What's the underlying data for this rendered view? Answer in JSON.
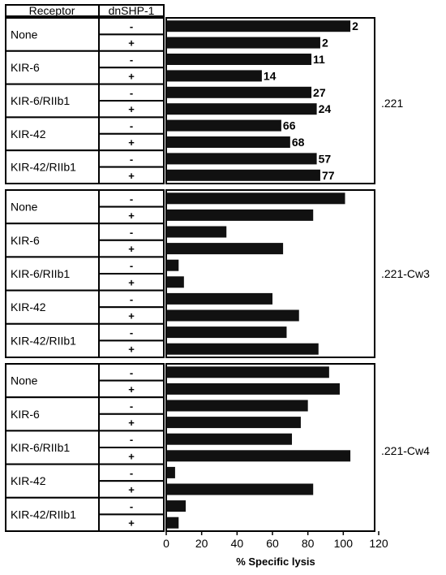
{
  "header": {
    "receptor": "Receptor",
    "dnshp": "dnSHP-1"
  },
  "xlabel": "% Specific lysis",
  "receptors": [
    "None",
    "KIR-6",
    "KIR-6/RIIb1",
    "KIR-42",
    "KIR-42/RIIb1"
  ],
  "shp_labels": [
    "-",
    "+"
  ],
  "colors": {
    "bar": "#111111",
    "frame": "#000000",
    "background": "#ffffff"
  },
  "chart_data": [
    {
      "type": "bar",
      "orientation": "horizontal",
      "panel": ".221",
      "categories": [
        "None -",
        "None +",
        "KIR-6 -",
        "KIR-6 +",
        "KIR-6/RIIb1 -",
        "KIR-6/RIIb1 +",
        "KIR-42 -",
        "KIR-42 +",
        "KIR-42/RIIb1 -",
        "KIR-42/RIIb1 +"
      ],
      "values": [
        104,
        87,
        82,
        54,
        82,
        85,
        65,
        70,
        85,
        87
      ],
      "data_labels": [
        "2",
        "2",
        "11",
        "14",
        "27",
        "24",
        "66",
        "68",
        "57",
        "77"
      ],
      "xlim": [
        0,
        120
      ]
    },
    {
      "type": "bar",
      "orientation": "horizontal",
      "panel": ".221-Cw3",
      "categories": [
        "None -",
        "None +",
        "KIR-6 -",
        "KIR-6 +",
        "KIR-6/RIIb1 -",
        "KIR-6/RIIb1 +",
        "KIR-42 -",
        "KIR-42 +",
        "KIR-42/RIIb1 -",
        "KIR-42/RIIb1 +"
      ],
      "values": [
        101,
        83,
        34,
        66,
        7,
        10,
        60,
        75,
        68,
        86
      ],
      "xlim": [
        0,
        120
      ]
    },
    {
      "type": "bar",
      "orientation": "horizontal",
      "panel": ".221-Cw4",
      "categories": [
        "None -",
        "None +",
        "KIR-6 -",
        "KIR-6 +",
        "KIR-6/RIIb1 -",
        "KIR-6/RIIb1 +",
        "KIR-42 -",
        "KIR-42 +",
        "KIR-42/RIIb1 -",
        "KIR-42/RIIb1 +"
      ],
      "values": [
        92,
        98,
        80,
        76,
        71,
        104,
        5,
        83,
        11,
        7
      ],
      "xlim": [
        0,
        120
      ],
      "xticks": [
        "0",
        "20",
        "40",
        "60",
        "80",
        "100",
        "120"
      ],
      "xlabel": "% Specific lysis"
    }
  ]
}
